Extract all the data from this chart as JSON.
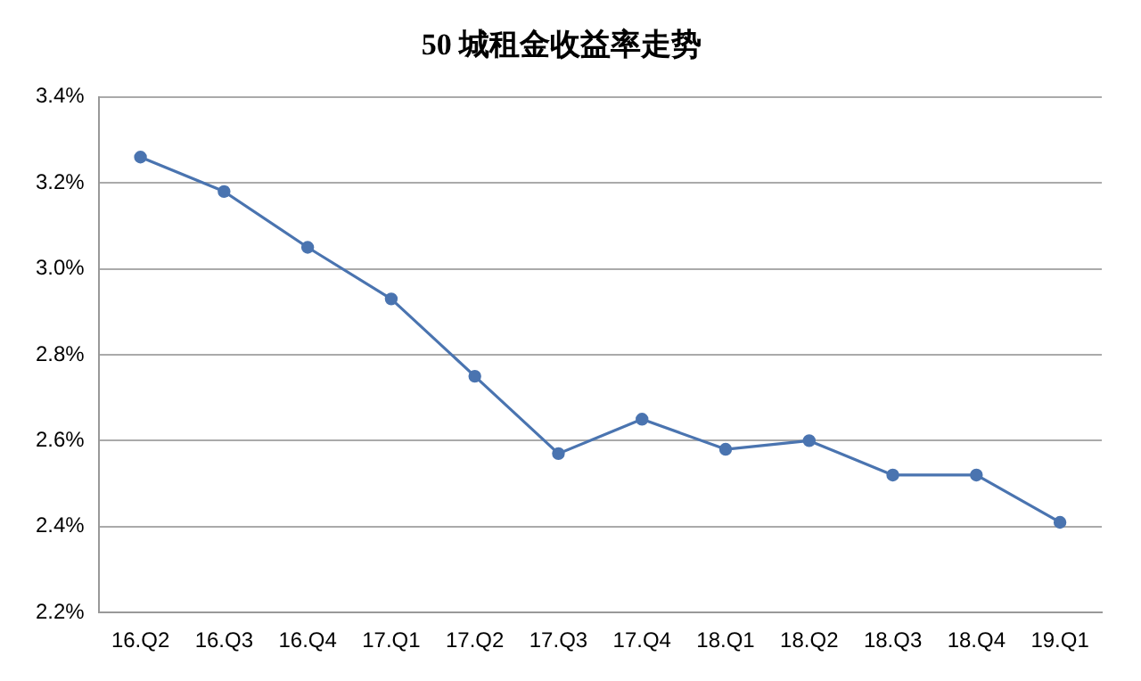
{
  "chart_data": {
    "type": "line",
    "title": "50 城租金收益率走势",
    "categories": [
      "16.Q2",
      "16.Q3",
      "16.Q4",
      "17.Q1",
      "17.Q2",
      "17.Q3",
      "17.Q4",
      "18.Q1",
      "18.Q2",
      "18.Q3",
      "18.Q4",
      "19.Q1"
    ],
    "series": [
      {
        "color": "#4a74b0",
        "values": [
          3.26,
          3.18,
          3.05,
          2.93,
          2.75,
          2.57,
          2.65,
          2.58,
          2.6,
          2.52,
          2.52,
          2.41
        ]
      }
    ],
    "ylim": [
      2.2,
      3.4
    ],
    "yticks": [
      {
        "value": 2.2,
        "label": "2.2%"
      },
      {
        "value": 2.4,
        "label": "2.4%"
      },
      {
        "value": 2.6,
        "label": "2.6%"
      },
      {
        "value": 2.8,
        "label": "2.8%"
      },
      {
        "value": 3.0,
        "label": "3.0%"
      },
      {
        "value": 3.2,
        "label": "3.2%"
      },
      {
        "value": 3.4,
        "label": "3.4%"
      }
    ],
    "grid": "y",
    "legend": false,
    "marker": "circle",
    "line_style": "solid"
  }
}
